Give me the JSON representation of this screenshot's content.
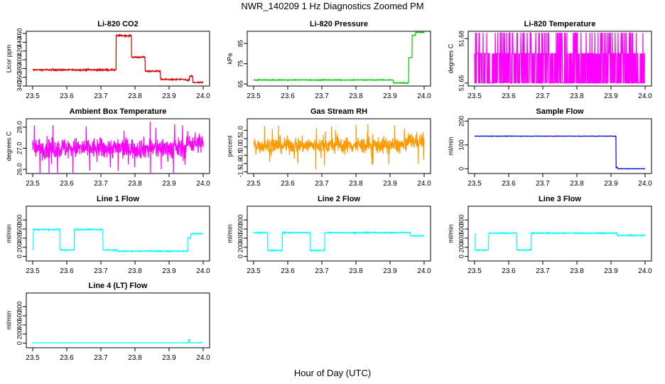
{
  "title": "NWR_140209  1 Hz Diagnostics Zoomed PM",
  "x_axis_title": "Hour of Day (UTC)",
  "chart_data": [
    {
      "id": "co2",
      "type": "line",
      "title": "Li-820 CO2",
      "ylabel": "Licor ppm",
      "color": "#dd0000",
      "ylim": [
        340,
        465
      ],
      "yticks": [
        340,
        360,
        380,
        400,
        420,
        440,
        460
      ],
      "yticklabels": [
        "340",
        "360",
        "380",
        "400",
        "420",
        "440",
        "460"
      ],
      "xlim": [
        23.5,
        24.0
      ],
      "xticks": [
        "23.5",
        "23.6",
        "23.7",
        "23.8",
        "23.9",
        "24.0"
      ],
      "noise": 1.2,
      "segments": [
        [
          23.5,
          23.745,
          377
        ],
        [
          23.745,
          23.79,
          455
        ],
        [
          23.79,
          23.83,
          406
        ],
        [
          23.83,
          23.875,
          374
        ],
        [
          23.875,
          23.95,
          355
        ],
        [
          23.95,
          23.96,
          353
        ],
        [
          23.96,
          23.97,
          362
        ],
        [
          23.97,
          24.0,
          348
        ]
      ]
    },
    {
      "id": "pressure",
      "type": "line",
      "title": "Li-820 Pressure",
      "ylabel": "kPa",
      "color": "#00cc00",
      "ylim": [
        64,
        91
      ],
      "yticks": [
        65,
        75,
        85
      ],
      "yticklabels": [
        "65",
        "75",
        "85"
      ],
      "xlim": [
        23.5,
        24.0
      ],
      "xticks": [
        "23.5",
        "23.6",
        "23.7",
        "23.8",
        "23.9",
        "24.0"
      ],
      "noise": 0.15,
      "segments": [
        [
          23.5,
          23.91,
          67.0
        ],
        [
          23.91,
          23.955,
          65.5
        ],
        [
          23.955,
          23.965,
          78
        ],
        [
          23.965,
          23.975,
          89
        ],
        [
          23.975,
          24.0,
          90.5
        ]
      ]
    },
    {
      "id": "licor-temp",
      "type": "line",
      "title": "Li-820 Temperature",
      "ylabel": "degrees C",
      "color": "#ff00ff",
      "ylim": [
        51.648,
        51.685
      ],
      "yticks": [
        51.65,
        51.68
      ],
      "yticklabels": [
        "51.65",
        "51.68"
      ],
      "xlim": [
        23.5,
        24.0
      ],
      "xticks": [
        "23.5",
        "23.6",
        "23.7",
        "23.8",
        "23.9",
        "24.0"
      ],
      "levels": [
        51.65,
        51.67,
        51.684
      ]
    },
    {
      "id": "ambient-temp",
      "type": "line",
      "title": "Ambient Box Temperature",
      "ylabel": "degrees C",
      "color": "#ff00ff",
      "ylim": [
        25.8,
        28.4
      ],
      "yticks": [
        26.0,
        27.0,
        28.0
      ],
      "yticklabels": [
        "26.0",
        "27.0",
        "28.0"
      ],
      "xlim": [
        23.5,
        24.0
      ],
      "xticks": [
        "23.5",
        "23.6",
        "23.7",
        "23.8",
        "23.9",
        "24.0"
      ],
      "mean": 27.0,
      "noise": 0.35
    },
    {
      "id": "gas-rh",
      "type": "line",
      "title": "Gas Stream RH",
      "ylabel": "percent",
      "color": "#ff9900",
      "ylim": [
        -1.6,
        1.7
      ],
      "yticks": [
        -1.5,
        -1.0,
        -0.5,
        0.0,
        0.5,
        1.0
      ],
      "yticklabels": [
        "-1.5",
        "-1.0",
        "-0.5",
        "0.0",
        "0.5",
        "1.0"
      ],
      "xlim": [
        23.5,
        24.0
      ],
      "xticks": [
        "23.5",
        "23.6",
        "23.7",
        "23.8",
        "23.9",
        "24.0"
      ],
      "mean": 0.1,
      "noise": 0.35
    },
    {
      "id": "sample-flow",
      "type": "line",
      "title": "Sample Flow",
      "ylabel": "ml/min",
      "color": "#0000dd",
      "ylim": [
        -20,
        210
      ],
      "yticks": [
        0,
        100,
        200
      ],
      "yticklabels": [
        "0",
        "100",
        "200"
      ],
      "xlim": [
        23.5,
        24.0
      ],
      "xticks": [
        "23.5",
        "23.6",
        "23.7",
        "23.8",
        "23.9",
        "24.0"
      ],
      "noise": 0.6,
      "segments": [
        [
          23.5,
          23.915,
          137
        ],
        [
          23.915,
          23.92,
          5
        ],
        [
          23.92,
          24.0,
          0
        ]
      ]
    },
    {
      "id": "line1-flow",
      "type": "line",
      "title": "Line 1 Flow",
      "ylabel": "ml/min",
      "color": "#00ffff",
      "ylim": [
        -100,
        1100
      ],
      "yticks": [
        0,
        200,
        400,
        600,
        800
      ],
      "yticklabels": [
        "0",
        "200",
        "400",
        "600",
        "800"
      ],
      "xlim": [
        23.5,
        24.0
      ],
      "xticks": [
        "23.5",
        "23.6",
        "23.7",
        "23.8",
        "23.9",
        "24.0"
      ],
      "noise": 8,
      "segments": [
        [
          23.5,
          23.502,
          150
        ],
        [
          23.502,
          23.58,
          590
        ],
        [
          23.58,
          23.622,
          140
        ],
        [
          23.622,
          23.706,
          590
        ],
        [
          23.706,
          23.75,
          140
        ],
        [
          23.75,
          23.955,
          115
        ],
        [
          23.955,
          23.963,
          400
        ],
        [
          23.963,
          24.0,
          500
        ]
      ]
    },
    {
      "id": "line2-flow",
      "type": "line",
      "title": "Line 2 Flow",
      "ylabel": "ml/min",
      "color": "#00ffff",
      "ylim": [
        -100,
        1100
      ],
      "yticks": [
        0,
        200,
        400,
        600,
        800
      ],
      "yticklabels": [
        "0",
        "200",
        "400",
        "600",
        "800"
      ],
      "xlim": [
        23.5,
        24.0
      ],
      "xticks": [
        "23.5",
        "23.6",
        "23.7",
        "23.8",
        "23.9",
        "24.0"
      ],
      "noise": 8,
      "segments": [
        [
          23.5,
          23.541,
          520
        ],
        [
          23.541,
          23.584,
          130
        ],
        [
          23.584,
          23.666,
          520
        ],
        [
          23.666,
          23.708,
          130
        ],
        [
          23.708,
          23.96,
          520
        ],
        [
          23.96,
          24.0,
          450
        ]
      ]
    },
    {
      "id": "line3-flow",
      "type": "line",
      "title": "Line 3 Flow",
      "ylabel": "ml/min",
      "color": "#00ffff",
      "ylim": [
        -100,
        1100
      ],
      "yticks": [
        0,
        200,
        400,
        600,
        800
      ],
      "yticklabels": [
        "0",
        "200",
        "400",
        "600",
        "800"
      ],
      "xlim": [
        23.5,
        24.0
      ],
      "xticks": [
        "23.5",
        "23.6",
        "23.7",
        "23.8",
        "23.9",
        "24.0"
      ],
      "noise": 8,
      "segments": [
        [
          23.5,
          23.502,
          500
        ],
        [
          23.502,
          23.541,
          140
        ],
        [
          23.541,
          23.624,
          510
        ],
        [
          23.624,
          23.666,
          140
        ],
        [
          23.666,
          23.918,
          510
        ],
        [
          23.918,
          24.0,
          460
        ]
      ]
    },
    {
      "id": "line4-flow",
      "type": "line",
      "title": "Line 4 (LT) Flow",
      "ylabel": "ml/min",
      "color": "#00ffff",
      "ylim": [
        -100,
        1100
      ],
      "yticks": [
        0,
        200,
        400,
        600,
        800
      ],
      "yticklabels": [
        "0",
        "200",
        "400",
        "600",
        "800"
      ],
      "xlim": [
        23.5,
        24.0
      ],
      "xticks": [
        "23.5",
        "23.6",
        "23.7",
        "23.8",
        "23.9",
        "24.0"
      ],
      "noise": 1.5,
      "segments": [
        [
          23.5,
          23.957,
          8
        ],
        [
          23.957,
          23.961,
          80
        ],
        [
          23.961,
          24.0,
          8
        ]
      ]
    }
  ]
}
